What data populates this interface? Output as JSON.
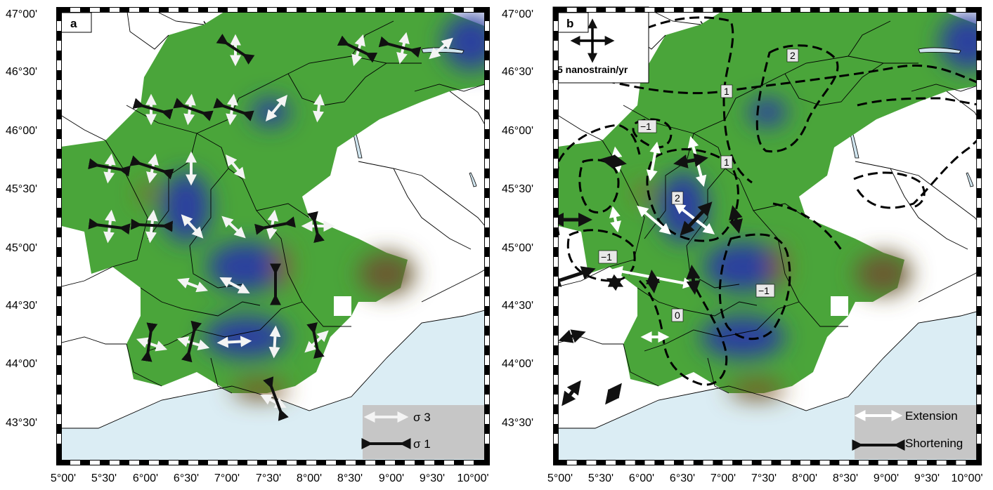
{
  "colors": {
    "sea": "#dbedf4",
    "green": "#4aa53a",
    "blue": "#2b3f9f",
    "brown": "#8a5a2a",
    "legend_bg": "#c6c6c6"
  },
  "axes": {
    "y_ticks": [
      "47°00'",
      "46°30'",
      "46°00'",
      "45°30'",
      "45°00'",
      "44°30'",
      "44°00'",
      "43°30'"
    ],
    "x_ticks": [
      "5°00'",
      "5°30'",
      "6°00'",
      "6°30'",
      "7°00'",
      "7°30'",
      "8°00'",
      "8°30'",
      "9°00'",
      "9°30'",
      "10°00'"
    ]
  },
  "panel_a": {
    "label": "a",
    "legend": {
      "extension_label": "σ 3",
      "shortening_label": "σ 1"
    }
  },
  "panel_b": {
    "label": "b",
    "scale_label": "5 nanostrain/yr",
    "legend": {
      "extension_label": "Extension",
      "shortening_label": "Shortening"
    },
    "contour_labels": [
      "2",
      "1",
      "−1",
      "1",
      "2",
      "−1",
      "−1",
      "0"
    ]
  }
}
